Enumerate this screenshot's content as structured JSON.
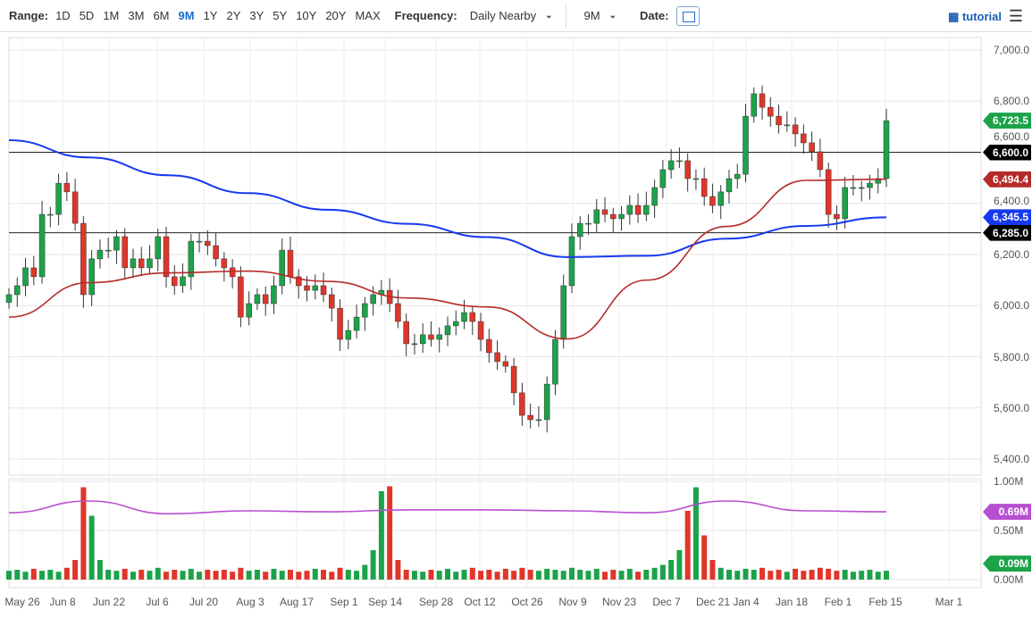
{
  "toolbar": {
    "range_label": "Range:",
    "ranges": [
      "1D",
      "5D",
      "1M",
      "3M",
      "6M",
      "9M",
      "1Y",
      "2Y",
      "3Y",
      "5Y",
      "10Y",
      "20Y",
      "MAX"
    ],
    "active_range": "9M",
    "frequency_label": "Frequency:",
    "frequency_value": "Daily Nearby",
    "period_value": "9M",
    "date_label": "Date:",
    "tutorial": "tutorial"
  },
  "colors": {
    "up": "#1ca34a",
    "down": "#e0362a",
    "ma_short": "#b52a2a",
    "ma_long": "#1638f0",
    "vol_ma": "#b84fd0"
  },
  "chart_data": {
    "type": "candlestick",
    "ylim": [
      5350,
      7050
    ],
    "y_ticks": [
      "7,000.0",
      "6,800.0",
      "6,600.0",
      "6,400.0",
      "6,200.0",
      "6,000.0",
      "5,800.0",
      "5,600.0",
      "5,400.0"
    ],
    "x_ticks": [
      "May 26",
      "Jun 8",
      "Jun 22",
      "Jul 6",
      "Jul 20",
      "Aug 3",
      "Aug 17",
      "Sep 1",
      "Sep 14",
      "Sep 28",
      "Oct 12",
      "Oct 26",
      "Nov 9",
      "Nov 23",
      "Dec 7",
      "Dec 21",
      "Jan 4",
      "Jan 18",
      "Feb 1",
      "Feb 15",
      "Mar 1"
    ],
    "closes": [
      6043,
      6078,
      6148,
      6113,
      6357,
      6357,
      6479,
      6445,
      6322,
      6043,
      6183,
      6217,
      6217,
      6270,
      6148,
      6183,
      6148,
      6183,
      6270,
      6113,
      6078,
      6113,
      6252,
      6252,
      6235,
      6183,
      6148,
      6113,
      5955,
      6008,
      6043,
      6008,
      6078,
      6217,
      6113,
      6078,
      6060,
      6078,
      6043,
      5990,
      5868,
      5903,
      5955,
      6008,
      6043,
      6060,
      6008,
      5938,
      5851,
      5851,
      5886,
      5868,
      5886,
      5921,
      5938,
      5973,
      5938,
      5868,
      5816,
      5781,
      5763,
      5659,
      5571,
      5554,
      5554,
      5693,
      5868,
      6078,
      6270,
      6322,
      6322,
      6375,
      6357,
      6340,
      6357,
      6392,
      6357,
      6392,
      6462,
      6532,
      6567,
      6567,
      6497,
      6497,
      6427,
      6392,
      6445,
      6497,
      6514,
      6741,
      6829,
      6776,
      6741,
      6707,
      6707,
      6672,
      6637,
      6602,
      6532,
      6357,
      6340,
      6462,
      6462,
      6462,
      6479,
      6497,
      6723.5
    ],
    "ma_short": [
      5955,
      6090,
      6128,
      6135,
      6095,
      6030,
      5995,
      5870,
      6100,
      6310,
      6490,
      6494.4
    ],
    "ma_long": [
      6647,
      6580,
      6510,
      6440,
      6375,
      6320,
      6268,
      6190,
      6195,
      6262,
      6312,
      6345.5
    ],
    "horizontal_lines": [
      6600.0,
      6285.0
    ],
    "tags": [
      {
        "value": "6,723.5",
        "color": "#1ca34a",
        "price": 6723.5
      },
      {
        "value": "6,600.0",
        "color": "#000000",
        "price": 6600
      },
      {
        "value": "6,494.4",
        "color": "#b52a2a",
        "price": 6494.4
      },
      {
        "value": "6,345.5",
        "color": "#1638f0",
        "price": 6345.5
      },
      {
        "value": "6,285.0",
        "color": "#000000",
        "price": 6285
      }
    ],
    "volume": {
      "ylim": [
        0,
        1
      ],
      "y_ticks": [
        "1.00M",
        "0.50M",
        "0.00M"
      ],
      "values": [
        0.09,
        0.1,
        0.08,
        0.11,
        0.09,
        0.1,
        0.08,
        0.12,
        0.2,
        0.94,
        0.65,
        0.2,
        0.1,
        0.09,
        0.11,
        0.08,
        0.1,
        0.09,
        0.12,
        0.08,
        0.1,
        0.09,
        0.11,
        0.08,
        0.1,
        0.09,
        0.1,
        0.08,
        0.12,
        0.09,
        0.1,
        0.08,
        0.11,
        0.09,
        0.1,
        0.08,
        0.09,
        0.11,
        0.1,
        0.08,
        0.12,
        0.1,
        0.09,
        0.15,
        0.3,
        0.9,
        0.95,
        0.2,
        0.1,
        0.09,
        0.08,
        0.1,
        0.09,
        0.11,
        0.08,
        0.1,
        0.12,
        0.09,
        0.1,
        0.08,
        0.11,
        0.09,
        0.12,
        0.1,
        0.09,
        0.11,
        0.1,
        0.09,
        0.12,
        0.1,
        0.09,
        0.11,
        0.08,
        0.1,
        0.09,
        0.11,
        0.08,
        0.1,
        0.12,
        0.15,
        0.2,
        0.3,
        0.7,
        0.94,
        0.45,
        0.2,
        0.12,
        0.1,
        0.09,
        0.11,
        0.1,
        0.12,
        0.09,
        0.1,
        0.08,
        0.11,
        0.09,
        0.1,
        0.12,
        0.11,
        0.09,
        0.1,
        0.08,
        0.09,
        0.1,
        0.08,
        0.09
      ],
      "ma": [
        0.68,
        0.8,
        0.67,
        0.7,
        0.69,
        0.71,
        0.71,
        0.7,
        0.68,
        0.8,
        0.7,
        0.69
      ],
      "tags": [
        {
          "value": "0.69M",
          "color": "#b84fd0",
          "v": 0.69
        },
        {
          "value": "0.09M",
          "color": "#1ca34a",
          "v": 0.09
        }
      ]
    }
  }
}
